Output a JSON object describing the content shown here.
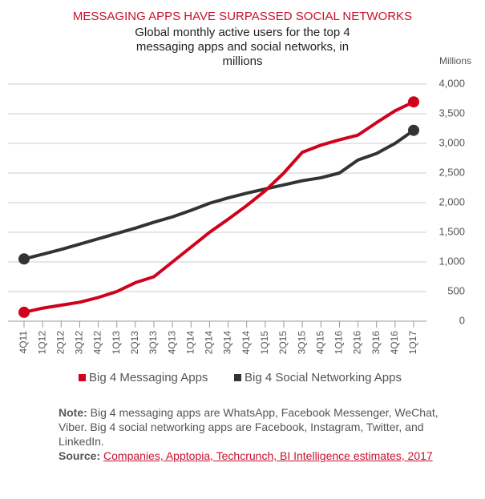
{
  "chart_data": {
    "type": "line",
    "title": "MESSAGING APPS HAVE SURPASSED SOCIAL NETWORKS",
    "subtitle": "Global monthly active users for the top 4 messaging apps and social networks, in millions",
    "y_axis_label": "Millions",
    "categories": [
      "4Q11",
      "1Q12",
      "2Q12",
      "3Q12",
      "4Q12",
      "1Q13",
      "2Q13",
      "3Q13",
      "4Q13",
      "1Q14",
      "2Q14",
      "3Q14",
      "4Q14",
      "1Q15",
      "2Q15",
      "3Q15",
      "4Q15",
      "1Q16",
      "2Q16",
      "3Q16",
      "4Q16",
      "1Q17"
    ],
    "series": [
      {
        "name": "Big 4 Messaging Apps",
        "color": "#d0021b",
        "values": [
          150,
          220,
          270,
          320,
          400,
          500,
          650,
          750,
          1000,
          1250,
          1500,
          1720,
          1950,
          2200,
          2500,
          2850,
          2970,
          3060,
          3140,
          3350,
          3550,
          3700
        ]
      },
      {
        "name": "Big 4 Social Networking Apps",
        "color": "#333333",
        "values": [
          1050,
          1130,
          1210,
          1300,
          1390,
          1480,
          1570,
          1670,
          1760,
          1870,
          1990,
          2080,
          2160,
          2230,
          2300,
          2370,
          2420,
          2500,
          2720,
          2830,
          3000,
          3220
        ]
      }
    ],
    "ylim": [
      0,
      4000
    ],
    "yticks": [
      0,
      500,
      {
        "value": 1000,
        "label": "1,000"
      },
      {
        "value": 1500,
        "label": "1,500"
      },
      {
        "value": 2000,
        "label": "2,000"
      },
      {
        "value": 2500,
        "label": "2,500"
      },
      {
        "value": 3000,
        "label": "3,000"
      },
      {
        "value": 3500,
        "label": "3,500"
      },
      {
        "value": 4000,
        "label": "4,000"
      }
    ],
    "grid": true,
    "note": {
      "label": "Note:",
      "text": "Big 4 messaging apps are WhatsApp, Facebook Messenger, WeChat, Viber. Big 4 social networking apps are Facebook, Instagram, Twitter, and LinkedIn."
    },
    "source": {
      "label": "Source:",
      "text": "Companies, Apptopia, Techcrunch, BI Intelligence estimates, 2017"
    }
  }
}
